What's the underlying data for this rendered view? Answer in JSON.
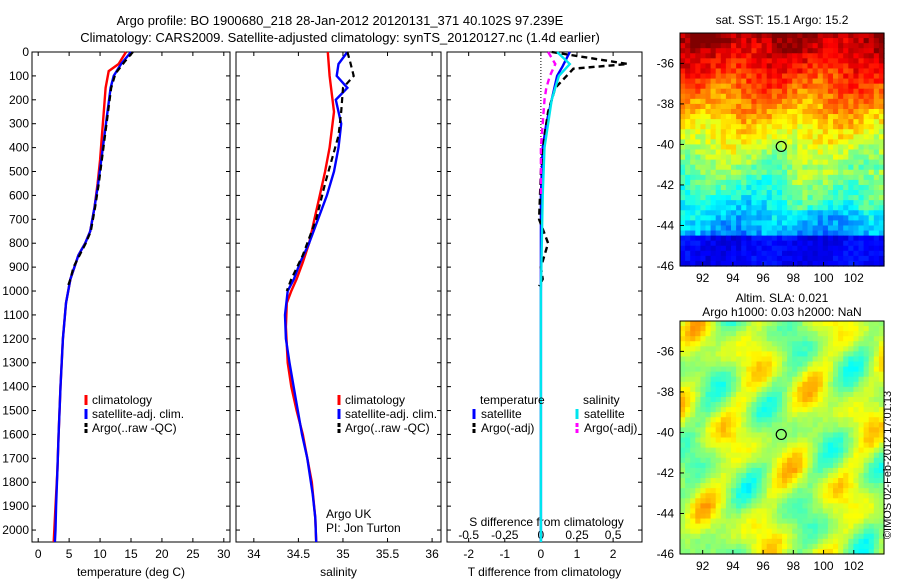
{
  "header": {
    "line1": "Argo profile: BO 1900680_218 28-Jan-2012 20120131_371 40.102S 97.239E",
    "line2": "Climatology: CARS2009. Satellite-adjusted climatology: synTS_20120127.nc (1.4d earlier)"
  },
  "colors": {
    "climatology": "#ff0000",
    "satellite": "#0000ff",
    "argo": "#000000",
    "sat_sal": "#00e5ee",
    "argo_sal": "#ff00ff"
  },
  "chart_data": [
    {
      "type": "line",
      "id": "temperature",
      "xlabel": "temperature (deg C)",
      "ylabel": "",
      "xlim": [
        -1,
        31
      ],
      "ylim": [
        2050,
        0
      ],
      "xticks": [
        "0",
        "5",
        "10",
        "15",
        "20",
        "25",
        "30"
      ],
      "yticks": [
        "0",
        "100",
        "200",
        "300",
        "400",
        "500",
        "600",
        "700",
        "800",
        "900",
        "1000",
        "1100",
        "1200",
        "1300",
        "1400",
        "1500",
        "1600",
        "1700",
        "1800",
        "1900",
        "2000"
      ],
      "legend": [
        "climatology",
        "satellite-adj. clim.",
        "Argo(..raw -QC)"
      ],
      "legend_position": "lower-middle",
      "series": [
        {
          "name": "climatology",
          "color": "#ff0000",
          "x": [
            14.2,
            13.0,
            11.4,
            10.9,
            10.6,
            10.3,
            10.0,
            9.6,
            9.1,
            8.4,
            7.6,
            6.5,
            5.2,
            4.5,
            4.0,
            3.6,
            3.3,
            3.1,
            2.8,
            2.6,
            2.5
          ],
          "y": [
            0,
            50,
            80,
            150,
            250,
            350,
            450,
            550,
            650,
            750,
            800,
            850,
            950,
            1050,
            1200,
            1400,
            1600,
            1750,
            1900,
            2000,
            2050
          ]
        },
        {
          "name": "satellite-adj. clim.",
          "color": "#0000ff",
          "x": [
            15.0,
            13.4,
            12.2,
            11.7,
            11.2,
            10.7,
            10.2,
            9.7,
            9.1,
            8.4,
            7.6,
            6.5,
            5.2,
            4.5,
            4.0,
            3.6,
            3.3,
            3.1,
            2.9,
            2.8,
            2.7
          ],
          "y": [
            0,
            50,
            100,
            150,
            250,
            350,
            450,
            550,
            650,
            750,
            800,
            850,
            950,
            1050,
            1200,
            1400,
            1600,
            1750,
            1900,
            2000,
            2050
          ]
        },
        {
          "name": "Argo(..raw -QC)",
          "color": "#000000",
          "dashed": true,
          "x": [
            15.3,
            14.0,
            12.5,
            11.8,
            11.3,
            10.8,
            10.3,
            9.8,
            9.2,
            8.5,
            7.7,
            6.7,
            5.7,
            5.2,
            4.8
          ],
          "y": [
            0,
            40,
            90,
            150,
            250,
            350,
            450,
            550,
            650,
            750,
            800,
            850,
            900,
            950,
            980
          ]
        }
      ]
    },
    {
      "type": "line",
      "id": "salinity",
      "xlabel": "salinity",
      "xlim": [
        33.8,
        36.1
      ],
      "ylim": [
        2050,
        0
      ],
      "xticks": [
        "34",
        "34.5",
        "35",
        "35.5",
        "36"
      ],
      "legend": [
        "climatology",
        "satellite-adj. clim.",
        "Argo(..raw -QC)"
      ],
      "annotation": [
        "Argo UK",
        "PI: Jon Turton"
      ],
      "series": [
        {
          "name": "climatology",
          "color": "#ff0000",
          "x": [
            34.83,
            34.85,
            34.9,
            34.85,
            34.8,
            34.74,
            34.68,
            34.62,
            34.55,
            34.48,
            34.42,
            34.37,
            34.36,
            34.38,
            34.42,
            34.48,
            34.55,
            34.6,
            34.65,
            34.69,
            34.7
          ],
          "y": [
            0,
            100,
            250,
            400,
            500,
            600,
            700,
            800,
            880,
            950,
            1000,
            1050,
            1150,
            1300,
            1400,
            1500,
            1600,
            1700,
            1800,
            1950,
            2050
          ]
        },
        {
          "name": "satellite-adj. clim.",
          "color": "#0000ff",
          "x": [
            35.05,
            34.95,
            34.93,
            35.05,
            34.92,
            34.98,
            34.95,
            34.9,
            34.82,
            34.72,
            34.62,
            34.52,
            34.45,
            34.38,
            34.35,
            34.36,
            34.4,
            34.47,
            34.54,
            34.6,
            34.66,
            34.69,
            34.7
          ],
          "y": [
            0,
            50,
            100,
            150,
            200,
            300,
            400,
            500,
            600,
            700,
            800,
            880,
            950,
            1000,
            1100,
            1200,
            1300,
            1450,
            1600,
            1700,
            1850,
            1950,
            2050
          ]
        },
        {
          "name": "Argo(..raw -QC)",
          "color": "#000000",
          "dashed": true,
          "x": [
            35.05,
            35.08,
            35.12,
            35.0,
            34.98,
            34.95,
            34.8,
            34.7,
            34.55,
            34.42,
            34.37
          ],
          "y": [
            0,
            40,
            100,
            150,
            250,
            350,
            550,
            700,
            850,
            950,
            1000
          ]
        }
      ]
    },
    {
      "type": "line",
      "id": "differences",
      "xlabel": "T difference from climatology",
      "xlabel_top": "S difference from climatology",
      "xlim": [
        -2.6,
        2.8
      ],
      "ylim": [
        2050,
        0
      ],
      "xticks": [
        "-2",
        "-1",
        "0",
        "1",
        "2"
      ],
      "xticks_S": [
        "-0.5",
        "-0.25",
        "0",
        "0.25",
        "0.5"
      ],
      "legend_groups": [
        "temperature",
        "salinity"
      ],
      "legend": [
        "satellite",
        "Argo(-adj)",
        "satellite",
        "Argo(-adj)"
      ],
      "series": [
        {
          "name": "satellite",
          "color": "#0000ff",
          "x": [
            0.8,
            0.6,
            0.45,
            0.3,
            0.15,
            0.05,
            0.0,
            0.0,
            0.0,
            0.0
          ],
          "y": [
            0,
            60,
            100,
            200,
            300,
            400,
            600,
            1000,
            1500,
            2050
          ]
        },
        {
          "name": "Argo(-adj)",
          "color": "#000000",
          "dashed": true,
          "x": [
            0.3,
            2.4,
            0.9,
            0.4,
            0.2,
            0.1,
            0.0,
            -0.05,
            0.2,
            0.0,
            0.05,
            -0.05
          ],
          "y": [
            0,
            50,
            70,
            150,
            250,
            350,
            500,
            700,
            800,
            900,
            950,
            980
          ]
        },
        {
          "name": "satellite",
          "color": "#00e5ee",
          "x": [
            0.45,
            0.8,
            0.5,
            0.3,
            0.2,
            0.1,
            0.05,
            0.0,
            0.0
          ],
          "y": [
            0,
            50,
            100,
            200,
            300,
            400,
            600,
            1000,
            2050
          ]
        },
        {
          "name": "Argo(-adj)",
          "color": "#ff00ff",
          "dashed": true,
          "x": [
            0.2,
            0.4,
            0.25,
            0.15,
            0.1,
            0.05,
            0.0,
            0.0,
            0.0
          ],
          "y": [
            0,
            50,
            100,
            150,
            200,
            300,
            400,
            500,
            600
          ]
        }
      ]
    },
    {
      "type": "heatmap",
      "id": "sst_map",
      "title": "sat. SST: 15.1  Argo: 15.2",
      "xticks": [
        "92",
        "94",
        "96",
        "98",
        "100",
        "102"
      ],
      "yticks": [
        "-36",
        "-38",
        "-40",
        "-42",
        "-44",
        "-46"
      ],
      "xlim": [
        90.5,
        104
      ],
      "ylim": [
        -46,
        -34.5
      ],
      "marker": {
        "lon": 97.2,
        "lat": -40.1
      }
    },
    {
      "type": "heatmap",
      "id": "sla_map",
      "title_lines": [
        "Altim. SLA: 0.021",
        "Argo h1000: 0.03 h2000: NaN"
      ],
      "xticks": [
        "92",
        "94",
        "96",
        "98",
        "100",
        "102"
      ],
      "yticks": [
        "-36",
        "-38",
        "-40",
        "-42",
        "-44",
        "-46"
      ],
      "xlim": [
        90.5,
        104
      ],
      "ylim": [
        -46,
        -34.5
      ],
      "marker": {
        "lon": 97.2,
        "lat": -40.1
      }
    }
  ],
  "footer": "©IMOS 02-Feb-2012 17:01:13"
}
